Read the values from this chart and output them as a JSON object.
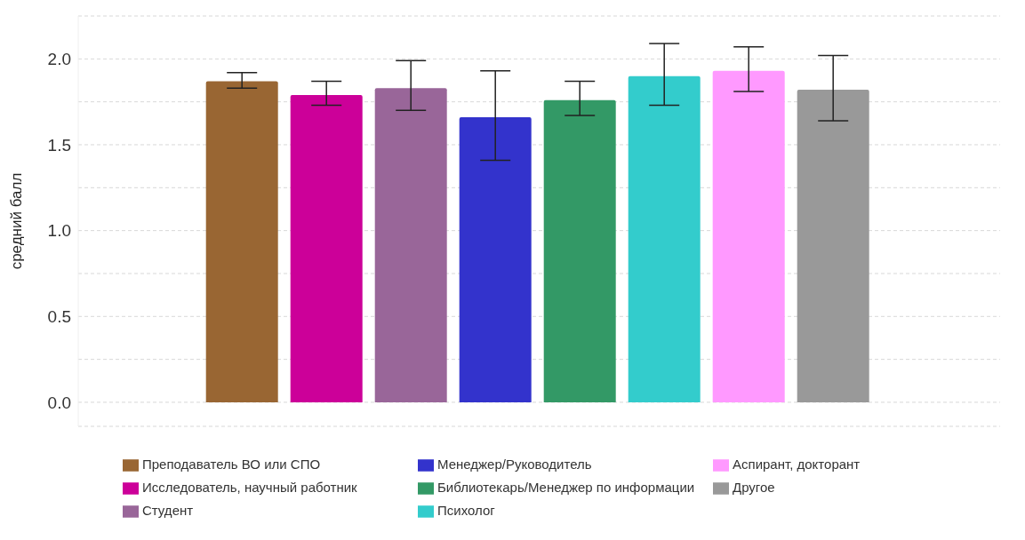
{
  "chart_data": {
    "type": "bar",
    "ylabel": "средний балл",
    "categories": [
      null
    ],
    "series": [
      {
        "name": "Преподаватель ВО или СПО",
        "color": "#996633",
        "values": [
          1.87
        ],
        "errors": [
          [
            1.83,
            1.92
          ]
        ]
      },
      {
        "name": "Исследователь, научный работник",
        "color": "#cc0099",
        "values": [
          1.79
        ],
        "errors": [
          [
            1.73,
            1.87
          ]
        ]
      },
      {
        "name": "Студент",
        "color": "#996699",
        "values": [
          1.83
        ],
        "errors": [
          [
            1.7,
            1.99
          ]
        ]
      },
      {
        "name": "Менеджер/Руководитель",
        "color": "#3333cc",
        "values": [
          1.66
        ],
        "errors": [
          [
            1.41,
            1.93
          ]
        ]
      },
      {
        "name": "Библиотекарь/Менеджер по информации",
        "color": "#339966",
        "values": [
          1.76
        ],
        "errors": [
          [
            1.67,
            1.87
          ]
        ]
      },
      {
        "name": "Психолог",
        "color": "#33cccc",
        "values": [
          1.9
        ],
        "errors": [
          [
            1.73,
            2.09
          ]
        ]
      },
      {
        "name": "Аспирант, докторант",
        "color": "#ff99ff",
        "values": [
          1.93
        ],
        "errors": [
          [
            1.81,
            2.07
          ]
        ]
      },
      {
        "name": "Другое",
        "color": "#999999",
        "values": [
          1.82
        ],
        "errors": [
          [
            1.64,
            2.02
          ]
        ]
      }
    ],
    "ylim": [
      -0.14,
      2.25
    ],
    "yticks": [
      {
        "value": 0,
        "label": "0.0"
      },
      {
        "value": 0.25,
        "label": null
      },
      {
        "value": 0.5,
        "label": "0.5"
      },
      {
        "value": 0.75,
        "label": null
      },
      {
        "value": 1,
        "label": "1.0"
      },
      {
        "value": 1.25,
        "label": null
      },
      {
        "value": 1.5,
        "label": "1.5"
      },
      {
        "value": 1.75,
        "label": null
      },
      {
        "value": 2,
        "label": "2.0"
      },
      {
        "value": 2.25,
        "label": null
      }
    ],
    "grid": "y",
    "legend": "bottom",
    "tick_labels": "y"
  }
}
